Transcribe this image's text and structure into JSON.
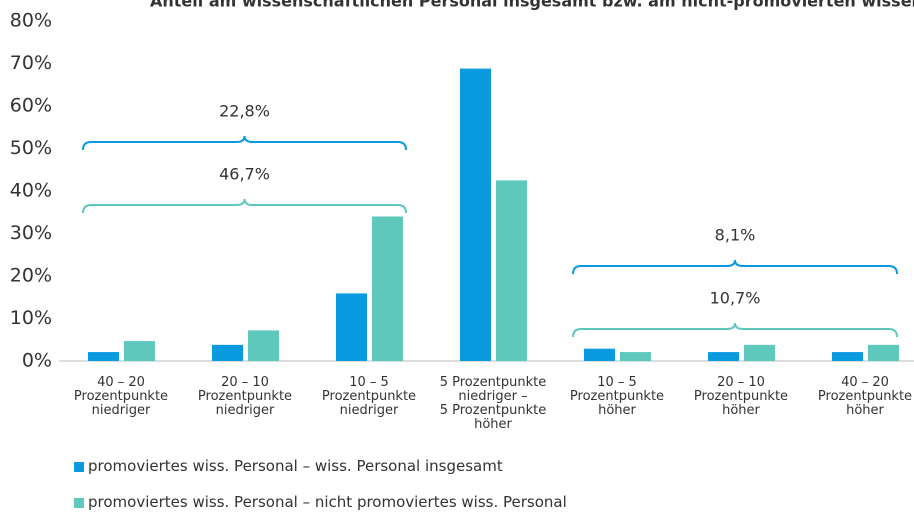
{
  "chart_data": {
    "type": "bar",
    "title": "Anteil am wissenschaftlichen Personal insgesamt bzw. am nicht-promovierten wissen",
    "categories": [
      "40 – 20\nProzentpunkte\nniedriger",
      "20 – 10\nProzentpunkte\nniedriger",
      "10 – 5\nProzentpunkte\nniedriger",
      "5 Prozentpunkte\nniedriger –\n5 Prozentpunkte\nhöher",
      "10 – 5\nProzentpunkte\nhöher",
      "20 – 10\nProzentpunkte\nhöher",
      "40 – 20\nProzentpunkte\nhöher"
    ],
    "series": [
      {
        "name": "promoviertes wiss. Personal – wiss. Personal insgesamt",
        "color": "#0a9ae0",
        "values": [
          2.1,
          3.8,
          15.9,
          68.8,
          2.9,
          2.1,
          2.1
        ]
      },
      {
        "name": "promoviertes wiss. Personal – nicht promoviertes wiss. Personal",
        "color": "#5ec8bd",
        "values": [
          4.7,
          7.2,
          34.0,
          42.5,
          2.1,
          3.8,
          3.8
        ]
      }
    ],
    "annotations": [
      "22,8%",
      "46,7%",
      "8,1%",
      "10,7%"
    ],
    "ylim": [
      0,
      80
    ],
    "yticks": [
      {
        "value": 0,
        "label": "0%"
      },
      {
        "value": 10,
        "label": "10%"
      },
      {
        "value": 20,
        "label": "20%"
      },
      {
        "value": 30,
        "label": "30%"
      },
      {
        "value": 40,
        "label": "40%"
      },
      {
        "value": 50,
        "label": "50%"
      },
      {
        "value": 60,
        "label": "60%"
      },
      {
        "value": 70,
        "label": "70%"
      },
      {
        "value": 80,
        "label": "80%"
      }
    ],
    "grid": false
  }
}
